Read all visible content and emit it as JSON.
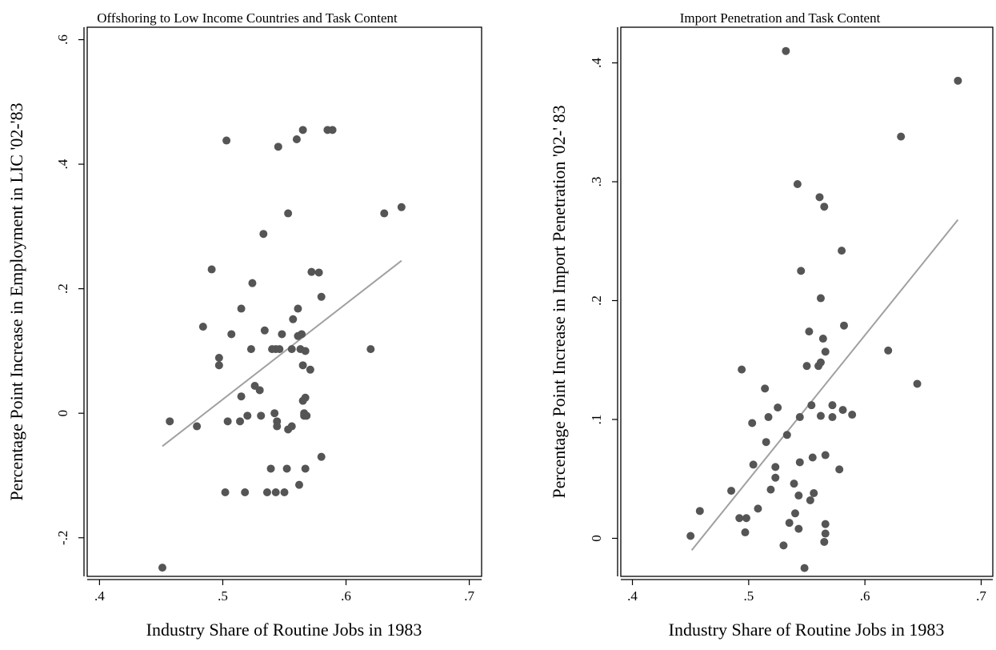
{
  "chart_data": [
    {
      "type": "scatter",
      "title": "Offshoring to Low Income Countries and Task Content",
      "xlabel": "Industry Share of Routine Jobs in 1983",
      "ylabel": "Percentage Point Increase in Employment in LIC '02-'83",
      "xlim": [
        0.39,
        0.71
      ],
      "ylim": [
        -0.262,
        0.62
      ],
      "xticks": [
        ".4",
        ".5",
        ".6",
        ".7"
      ],
      "xtick_values": [
        0.4,
        0.5,
        0.6,
        0.7
      ],
      "yticks": [
        "-.2",
        "0",
        ".2",
        ".4",
        ".6"
      ],
      "ytick_values": [
        -0.2,
        0,
        0.2,
        0.4,
        0.6
      ],
      "grid": false,
      "marker_color": "#555555",
      "fit_color": "#a0a0a0",
      "fit_line": {
        "x": [
          0.451,
          0.645
        ],
        "y": [
          -0.053,
          0.245
        ]
      },
      "points": [
        [
          0.451,
          -0.248
        ],
        [
          0.457,
          -0.013
        ],
        [
          0.479,
          -0.021
        ],
        [
          0.484,
          0.139
        ],
        [
          0.491,
          0.231
        ],
        [
          0.497,
          0.089
        ],
        [
          0.497,
          0.077
        ],
        [
          0.502,
          -0.127
        ],
        [
          0.503,
          0.438
        ],
        [
          0.504,
          -0.013
        ],
        [
          0.507,
          0.127
        ],
        [
          0.514,
          -0.013
        ],
        [
          0.515,
          0.027
        ],
        [
          0.515,
          0.168
        ],
        [
          0.518,
          -0.127
        ],
        [
          0.52,
          -0.004
        ],
        [
          0.523,
          0.103
        ],
        [
          0.524,
          0.209
        ],
        [
          0.526,
          0.044
        ],
        [
          0.53,
          0.037
        ],
        [
          0.531,
          -0.004
        ],
        [
          0.533,
          0.288
        ],
        [
          0.534,
          0.133
        ],
        [
          0.536,
          -0.127
        ],
        [
          0.539,
          -0.089
        ],
        [
          0.54,
          0.103
        ],
        [
          0.542,
          0.0
        ],
        [
          0.543,
          -0.127
        ],
        [
          0.543,
          0.103
        ],
        [
          0.544,
          -0.021
        ],
        [
          0.544,
          -0.013
        ],
        [
          0.545,
          0.428
        ],
        [
          0.546,
          0.103
        ],
        [
          0.548,
          0.127
        ],
        [
          0.55,
          -0.127
        ],
        [
          0.552,
          -0.089
        ],
        [
          0.553,
          0.321
        ],
        [
          0.553,
          -0.026
        ],
        [
          0.556,
          -0.021
        ],
        [
          0.556,
          0.103
        ],
        [
          0.557,
          0.151
        ],
        [
          0.56,
          0.44
        ],
        [
          0.561,
          0.168
        ],
        [
          0.561,
          0.124
        ],
        [
          0.562,
          -0.115
        ],
        [
          0.563,
          0.103
        ],
        [
          0.564,
          0.127
        ],
        [
          0.565,
          0.455
        ],
        [
          0.565,
          0.077
        ],
        [
          0.565,
          0.02
        ],
        [
          0.566,
          0.0
        ],
        [
          0.566,
          -0.004
        ],
        [
          0.567,
          0.1
        ],
        [
          0.567,
          0.025
        ],
        [
          0.567,
          -0.089
        ],
        [
          0.568,
          -0.004
        ],
        [
          0.571,
          0.07
        ],
        [
          0.572,
          0.227
        ],
        [
          0.578,
          0.226
        ],
        [
          0.58,
          -0.07
        ],
        [
          0.58,
          0.187
        ],
        [
          0.585,
          0.455
        ],
        [
          0.589,
          0.455
        ],
        [
          0.62,
          0.103
        ],
        [
          0.631,
          0.321
        ],
        [
          0.645,
          0.331
        ]
      ]
    },
    {
      "type": "scatter",
      "title": "Import Penetration and Task Content",
      "xlabel": "Industry Share of Routine Jobs in 1983",
      "ylabel": "Percentage Point Increase in Import Penetration '02-' 83",
      "xlim": [
        0.39,
        0.71
      ],
      "ylim": [
        -0.032,
        0.43
      ],
      "xticks": [
        ".4",
        ".5",
        ".6",
        ".7"
      ],
      "xtick_values": [
        0.4,
        0.5,
        0.6,
        0.7
      ],
      "yticks": [
        "0",
        ".1",
        ".2",
        ".3",
        ".4"
      ],
      "ytick_values": [
        0,
        0.1,
        0.2,
        0.3,
        0.4
      ],
      "grid": false,
      "marker_color": "#555555",
      "fit_color": "#a0a0a0",
      "fit_line": {
        "x": [
          0.451,
          0.68
        ],
        "y": [
          -0.01,
          0.268
        ]
      },
      "points": [
        [
          0.45,
          0.002
        ],
        [
          0.458,
          0.023
        ],
        [
          0.485,
          0.04
        ],
        [
          0.492,
          0.017
        ],
        [
          0.494,
          0.142
        ],
        [
          0.497,
          0.005
        ],
        [
          0.498,
          0.017
        ],
        [
          0.503,
          0.097
        ],
        [
          0.504,
          0.062
        ],
        [
          0.508,
          0.025
        ],
        [
          0.514,
          0.126
        ],
        [
          0.515,
          0.081
        ],
        [
          0.517,
          0.102
        ],
        [
          0.519,
          0.041
        ],
        [
          0.523,
          0.051
        ],
        [
          0.523,
          0.06
        ],
        [
          0.525,
          0.11
        ],
        [
          0.53,
          -0.006
        ],
        [
          0.532,
          0.41
        ],
        [
          0.533,
          0.087
        ],
        [
          0.535,
          0.013
        ],
        [
          0.539,
          0.046
        ],
        [
          0.54,
          0.021
        ],
        [
          0.542,
          0.298
        ],
        [
          0.543,
          0.008
        ],
        [
          0.543,
          0.036
        ],
        [
          0.544,
          0.102
        ],
        [
          0.544,
          0.064
        ],
        [
          0.545,
          0.225
        ],
        [
          0.548,
          -0.025
        ],
        [
          0.55,
          0.145
        ],
        [
          0.552,
          0.174
        ],
        [
          0.553,
          0.032
        ],
        [
          0.554,
          0.112
        ],
        [
          0.555,
          0.068
        ],
        [
          0.556,
          0.038
        ],
        [
          0.56,
          0.145
        ],
        [
          0.561,
          0.287
        ],
        [
          0.562,
          0.148
        ],
        [
          0.562,
          0.202
        ],
        [
          0.562,
          0.103
        ],
        [
          0.564,
          0.168
        ],
        [
          0.565,
          0.279
        ],
        [
          0.565,
          -0.003
        ],
        [
          0.566,
          0.012
        ],
        [
          0.566,
          0.004
        ],
        [
          0.566,
          0.07
        ],
        [
          0.566,
          0.157
        ],
        [
          0.572,
          0.102
        ],
        [
          0.572,
          0.112
        ],
        [
          0.578,
          0.058
        ],
        [
          0.58,
          0.242
        ],
        [
          0.581,
          0.108
        ],
        [
          0.582,
          0.179
        ],
        [
          0.589,
          0.104
        ],
        [
          0.62,
          0.158
        ],
        [
          0.631,
          0.338
        ],
        [
          0.645,
          0.13
        ],
        [
          0.68,
          0.385
        ]
      ]
    }
  ]
}
